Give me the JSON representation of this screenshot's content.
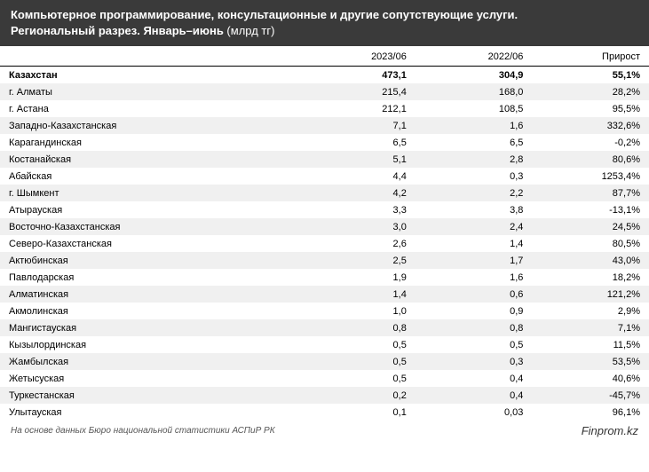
{
  "header": {
    "title_line1": "Компьютерное программирование, консультационные и другие сопутствующие услуги.",
    "title_line2_prefix": "Региональный разрез. Январь–июнь ",
    "title_line2_unit": "(млрд тг)"
  },
  "columns": {
    "name": "",
    "col1": "2023/06",
    "col2": "2022/06",
    "col3": "Прирост"
  },
  "rows": [
    {
      "name": "Казахстан",
      "v1": "473,1",
      "v2": "304,9",
      "v3": "55,1%",
      "total": true
    },
    {
      "name": "г. Алматы",
      "v1": "215,4",
      "v2": "168,0",
      "v3": "28,2%"
    },
    {
      "name": "г. Астана",
      "v1": "212,1",
      "v2": "108,5",
      "v3": "95,5%"
    },
    {
      "name": "Западно-Казахстанская",
      "v1": "7,1",
      "v2": "1,6",
      "v3": "332,6%"
    },
    {
      "name": "Карагандинская",
      "v1": "6,5",
      "v2": "6,5",
      "v3": "-0,2%"
    },
    {
      "name": "Костанайская",
      "v1": "5,1",
      "v2": "2,8",
      "v3": "80,6%"
    },
    {
      "name": "Абайская",
      "v1": "4,4",
      "v2": "0,3",
      "v3": "1253,4%"
    },
    {
      "name": "г. Шымкент",
      "v1": "4,2",
      "v2": "2,2",
      "v3": "87,7%"
    },
    {
      "name": "Атырауская",
      "v1": "3,3",
      "v2": "3,8",
      "v3": "-13,1%"
    },
    {
      "name": "Восточно-Казахстанская",
      "v1": "3,0",
      "v2": "2,4",
      "v3": "24,5%"
    },
    {
      "name": "Северо-Казахстанская",
      "v1": "2,6",
      "v2": "1,4",
      "v3": "80,5%"
    },
    {
      "name": "Актюбинская",
      "v1": "2,5",
      "v2": "1,7",
      "v3": "43,0%"
    },
    {
      "name": "Павлодарская",
      "v1": "1,9",
      "v2": "1,6",
      "v3": "18,2%"
    },
    {
      "name": "Алматинская",
      "v1": "1,4",
      "v2": "0,6",
      "v3": "121,2%"
    },
    {
      "name": "Акмолинская",
      "v1": "1,0",
      "v2": "0,9",
      "v3": "2,9%"
    },
    {
      "name": "Мангистауская",
      "v1": "0,8",
      "v2": "0,8",
      "v3": "7,1%"
    },
    {
      "name": "Кызылординская",
      "v1": "0,5",
      "v2": "0,5",
      "v3": "11,5%"
    },
    {
      "name": "Жамбылская",
      "v1": "0,5",
      "v2": "0,3",
      "v3": "53,5%"
    },
    {
      "name": "Жетысуская",
      "v1": "0,5",
      "v2": "0,4",
      "v3": "40,6%"
    },
    {
      "name": "Туркестанская",
      "v1": "0,2",
      "v2": "0,4",
      "v3": "-45,7%"
    },
    {
      "name": "Улытауская",
      "v1": "0,1",
      "v2": "0,03",
      "v3": "96,1%"
    }
  ],
  "footer": {
    "source": "На основе данных Бюро национальной статистики АСПиР РК",
    "brand": "Finprom.kz"
  },
  "colors": {
    "header_bg": "#3a3a3a",
    "stripe_odd": "#f0f0f0",
    "stripe_even": "#ffffff",
    "text": "#000000"
  }
}
